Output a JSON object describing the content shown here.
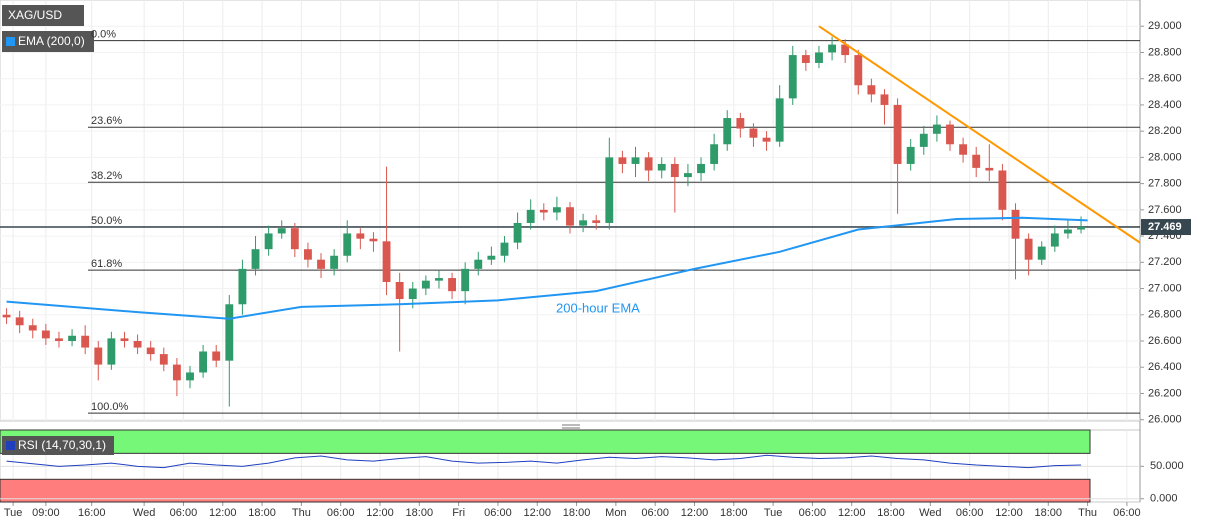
{
  "chart_data": {
    "type": "candlestick",
    "symbol": "XAG/USD",
    "indicator_label": "EMA (200,0)",
    "annotation": "200-hour EMA",
    "colors": {
      "up": "#2f9a6a",
      "down": "#d9574f",
      "ema": "#2196f3",
      "trend": "#ff9800",
      "fib": "#333333"
    },
    "xlim": [
      -1,
      173
    ],
    "ylim": [
      25.99,
      29.2
    ],
    "grid": true,
    "xticks": [
      {
        "value": 1,
        "label": "Tue"
      },
      {
        "value": 6,
        "label": "09:00"
      },
      {
        "value": 13,
        "label": "16:00"
      },
      {
        "value": 21,
        "label": "Wed"
      },
      {
        "value": 27,
        "label": "06:00"
      },
      {
        "value": 33,
        "label": "12:00"
      },
      {
        "value": 39,
        "label": "18:00"
      },
      {
        "value": 45,
        "label": "Thu"
      },
      {
        "value": 51,
        "label": "06:00"
      },
      {
        "value": 57,
        "label": "12:00"
      },
      {
        "value": 63,
        "label": "18:00"
      },
      {
        "value": 69,
        "label": "Fri"
      },
      {
        "value": 75,
        "label": "06:00"
      },
      {
        "value": 81,
        "label": "12:00"
      },
      {
        "value": 87,
        "label": "18:00"
      },
      {
        "value": 93,
        "label": "Mon"
      },
      {
        "value": 99,
        "label": "06:00"
      },
      {
        "value": 105,
        "label": "12:00"
      },
      {
        "value": 111,
        "label": "18:00"
      },
      {
        "value": 117,
        "label": "Tue"
      },
      {
        "value": 123,
        "label": "06:00"
      },
      {
        "value": 129,
        "label": "12:00"
      },
      {
        "value": 135,
        "label": "18:00"
      },
      {
        "value": 141,
        "label": "Wed"
      },
      {
        "value": 147,
        "label": "06:00"
      },
      {
        "value": 153,
        "label": "12:00"
      },
      {
        "value": 159,
        "label": "18:00"
      },
      {
        "value": 165,
        "label": "Thu"
      },
      {
        "value": 171,
        "label": "06:00"
      }
    ],
    "yticks": [
      {
        "value": 29.0,
        "label": "29.000"
      },
      {
        "value": 28.8,
        "label": "28.800"
      },
      {
        "value": 28.6,
        "label": "28.600"
      },
      {
        "value": 28.4,
        "label": "28.400"
      },
      {
        "value": 28.2,
        "label": "28.200"
      },
      {
        "value": 28.0,
        "label": "28.000"
      },
      {
        "value": 27.8,
        "label": "27.800"
      },
      {
        "value": 27.6,
        "label": "27.600"
      },
      {
        "value": 27.4,
        "label": "27.400"
      },
      {
        "value": 27.2,
        "label": "27.200"
      },
      {
        "value": 27.0,
        "label": "27.000"
      },
      {
        "value": 26.8,
        "label": "26.800"
      },
      {
        "value": 26.6,
        "label": "26.600"
      },
      {
        "value": 26.4,
        "label": "26.400"
      },
      {
        "value": 26.2,
        "label": "26.200"
      },
      {
        "value": 26.0,
        "label": "26.000"
      }
    ],
    "last_price": 27.469,
    "fib_levels": [
      {
        "label": "0.0%",
        "value": 28.89
      },
      {
        "label": "23.6%",
        "value": 28.23
      },
      {
        "label": "38.2%",
        "value": 27.81
      },
      {
        "label": "50.0%",
        "value": 27.47
      },
      {
        "label": "61.8%",
        "value": 27.14
      },
      {
        "label": "100.0%",
        "value": 26.05
      }
    ],
    "x": [
      0,
      2,
      4,
      6,
      8,
      10,
      12,
      14,
      16,
      18,
      20,
      22,
      24,
      26,
      28,
      30,
      32,
      34,
      36,
      38,
      40,
      42,
      44,
      46,
      48,
      50,
      52,
      54,
      56,
      58,
      60,
      62,
      64,
      66,
      68,
      70,
      72,
      74,
      76,
      78,
      80,
      82,
      84,
      86,
      88,
      90,
      92,
      94,
      96,
      98,
      100,
      102,
      104,
      106,
      108,
      110,
      112,
      114,
      116,
      118,
      120,
      122,
      124,
      126,
      128,
      130,
      132,
      134,
      136,
      138,
      140,
      142,
      144,
      146,
      148,
      150,
      152,
      154,
      156,
      158,
      160,
      162,
      164
    ],
    "open": [
      26.8,
      26.78,
      26.72,
      26.68,
      26.62,
      26.6,
      26.64,
      26.55,
      26.42,
      26.62,
      26.6,
      26.55,
      26.5,
      26.42,
      26.3,
      26.36,
      26.52,
      26.45,
      26.88,
      27.15,
      27.3,
      27.42,
      27.46,
      27.3,
      27.22,
      27.15,
      27.25,
      27.42,
      27.38,
      27.36,
      27.05,
      26.92,
      27.0,
      27.06,
      27.08,
      26.98,
      27.15,
      27.22,
      27.25,
      27.35,
      27.5,
      27.6,
      27.58,
      27.62,
      27.48,
      27.52,
      27.5,
      28.0,
      27.95,
      28.0,
      27.9,
      27.95,
      27.85,
      27.88,
      27.95,
      28.1,
      28.3,
      28.22,
      28.15,
      28.12,
      28.45,
      28.78,
      28.72,
      28.8,
      28.86,
      28.78,
      28.55,
      28.48,
      28.4,
      27.95,
      28.08,
      28.18,
      28.25,
      28.1,
      28.02,
      27.92,
      27.9,
      27.6,
      27.38,
      27.22,
      27.32,
      27.42,
      27.45
    ],
    "high": [
      26.85,
      26.83,
      26.77,
      26.73,
      26.67,
      26.69,
      26.72,
      26.6,
      26.67,
      26.67,
      26.65,
      26.6,
      26.55,
      26.47,
      26.41,
      26.57,
      26.57,
      26.95,
      27.22,
      27.4,
      27.48,
      27.52,
      27.5,
      27.35,
      27.27,
      27.3,
      27.52,
      27.46,
      27.43,
      27.93,
      27.12,
      27.05,
      27.1,
      27.14,
      27.12,
      27.2,
      27.28,
      27.32,
      27.4,
      27.58,
      27.68,
      27.65,
      27.7,
      27.66,
      27.57,
      27.56,
      28.15,
      28.05,
      28.08,
      28.04,
      28.0,
      28.0,
      27.95,
      28.0,
      28.18,
      28.36,
      28.34,
      28.26,
      28.2,
      28.55,
      28.85,
      28.82,
      28.85,
      28.92,
      28.9,
      28.82,
      28.6,
      28.52,
      28.45,
      28.14,
      28.24,
      28.32,
      28.28,
      28.15,
      28.08,
      28.1,
      27.95,
      27.65,
      27.42,
      27.36,
      27.48,
      27.52,
      27.55
    ],
    "low": [
      26.73,
      26.66,
      26.62,
      26.57,
      26.55,
      26.56,
      26.5,
      26.3,
      26.38,
      26.55,
      26.5,
      26.45,
      26.37,
      26.18,
      26.24,
      26.32,
      26.4,
      26.1,
      26.8,
      27.1,
      27.25,
      27.38,
      27.24,
      27.16,
      27.08,
      27.1,
      27.2,
      27.3,
      27.28,
      26.95,
      26.52,
      26.85,
      26.95,
      27.0,
      26.92,
      26.88,
      27.1,
      27.18,
      27.2,
      27.3,
      27.45,
      27.52,
      27.52,
      27.42,
      27.43,
      27.45,
      27.45,
      27.88,
      27.85,
      27.82,
      27.84,
      27.58,
      27.78,
      27.82,
      27.9,
      28.05,
      28.15,
      28.08,
      28.05,
      28.08,
      28.4,
      28.66,
      28.68,
      28.74,
      28.72,
      28.48,
      28.42,
      28.25,
      27.57,
      27.9,
      28.02,
      28.12,
      28.05,
      27.96,
      27.85,
      27.82,
      27.52,
      27.07,
      27.1,
      27.18,
      27.28,
      27.38,
      27.42
    ],
    "close": [
      26.78,
      26.72,
      26.68,
      26.62,
      26.6,
      26.64,
      26.55,
      26.42,
      26.62,
      26.6,
      26.55,
      26.5,
      26.42,
      26.3,
      26.36,
      26.52,
      26.45,
      26.88,
      27.15,
      27.3,
      27.42,
      27.46,
      27.3,
      27.22,
      27.15,
      27.25,
      27.42,
      27.38,
      27.36,
      27.05,
      26.92,
      27.0,
      27.06,
      27.08,
      26.98,
      27.15,
      27.22,
      27.25,
      27.35,
      27.5,
      27.6,
      27.58,
      27.62,
      27.48,
      27.52,
      27.5,
      28.0,
      27.95,
      28.0,
      27.9,
      27.95,
      27.85,
      27.88,
      27.95,
      28.1,
      28.3,
      28.22,
      28.15,
      28.12,
      28.45,
      28.78,
      28.72,
      28.8,
      28.86,
      28.78,
      28.55,
      28.48,
      28.4,
      27.95,
      28.08,
      28.18,
      28.25,
      28.1,
      28.02,
      27.92,
      27.9,
      27.6,
      27.38,
      27.22,
      27.32,
      27.42,
      27.45,
      27.47
    ],
    "ema": {
      "x": [
        0,
        20,
        34,
        45,
        60,
        75,
        90,
        105,
        118,
        130,
        145,
        155,
        165
      ],
      "values": [
        26.9,
        26.82,
        26.77,
        26.86,
        26.88,
        26.91,
        26.98,
        27.15,
        27.28,
        27.45,
        27.53,
        27.54,
        27.52
      ]
    },
    "trendline": {
      "x": [
        124,
        173
      ],
      "values": [
        29.0,
        27.35
      ]
    },
    "rsi": {
      "label": "RSI (14,70,30,1)",
      "color": "#1f3fbf",
      "ylim": [
        -5,
        106
      ],
      "overbought": 70,
      "oversold": 30,
      "yticks": [
        {
          "value": 50,
          "label": "50.000"
        },
        {
          "value": 0,
          "label": "0.000"
        }
      ],
      "x": [
        0,
        4,
        8,
        12,
        16,
        20,
        24,
        28,
        32,
        36,
        40,
        44,
        48,
        52,
        56,
        60,
        64,
        68,
        72,
        76,
        80,
        84,
        88,
        92,
        96,
        100,
        104,
        108,
        112,
        116,
        120,
        124,
        128,
        132,
        136,
        140,
        144,
        148,
        152,
        156,
        160,
        164
      ],
      "values": [
        58,
        54,
        50,
        52,
        55,
        50,
        48,
        55,
        52,
        50,
        55,
        63,
        66,
        60,
        58,
        62,
        65,
        58,
        55,
        56,
        58,
        55,
        60,
        64,
        62,
        65,
        63,
        60,
        62,
        67,
        64,
        62,
        63,
        66,
        62,
        60,
        55,
        52,
        50,
        48,
        51,
        52
      ]
    }
  }
}
